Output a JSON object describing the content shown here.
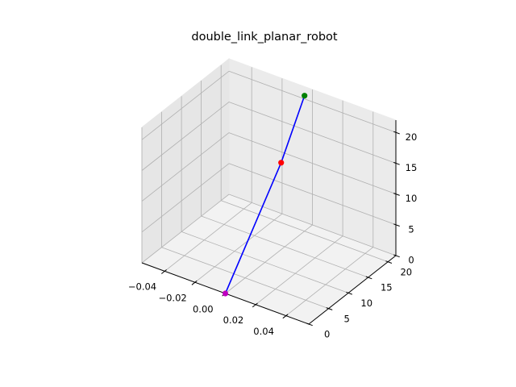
{
  "chart_data": {
    "type": "line3d",
    "title": "double_link_planar_robot",
    "xlabel": "",
    "ylabel": "",
    "zlabel": "",
    "grid": true,
    "xlim": [
      -0.055,
      0.055
    ],
    "ylim": [
      0,
      22
    ],
    "zlim": [
      0,
      22
    ],
    "x_ticks": [
      -0.04,
      -0.02,
      0.0,
      0.02,
      0.04
    ],
    "x_tick_labels": [
      "−0.04",
      "−0.02",
      "0.00",
      "0.02",
      "0.04"
    ],
    "y_ticks": [
      0,
      5,
      10,
      15,
      20
    ],
    "y_tick_labels": [
      "0",
      "5",
      "10",
      "15",
      "20"
    ],
    "z_ticks": [
      0,
      5,
      10,
      15,
      20
    ],
    "z_tick_labels": [
      "0",
      "5",
      "10",
      "15",
      "20"
    ],
    "series": [
      {
        "color": "#0000ff",
        "points": [
          {
            "x": 0,
            "y": 0,
            "z": 0
          },
          {
            "x": 0,
            "y": 14.1,
            "z": 14.1
          },
          {
            "x": 0,
            "y": 20.0,
            "z": 22.0
          }
        ]
      }
    ],
    "markers": [
      {
        "role": "base",
        "color": "#bf00bf",
        "x": 0,
        "y": 0,
        "z": 0
      },
      {
        "role": "elbow",
        "color": "#ff0000",
        "x": 0,
        "y": 14.1,
        "z": 14.1
      },
      {
        "role": "end-effector",
        "color": "#008000",
        "x": 0,
        "y": 20.0,
        "z": 22.0
      }
    ],
    "pane_color": "#f2f2f2",
    "grid_color": "#b0b0b0"
  }
}
